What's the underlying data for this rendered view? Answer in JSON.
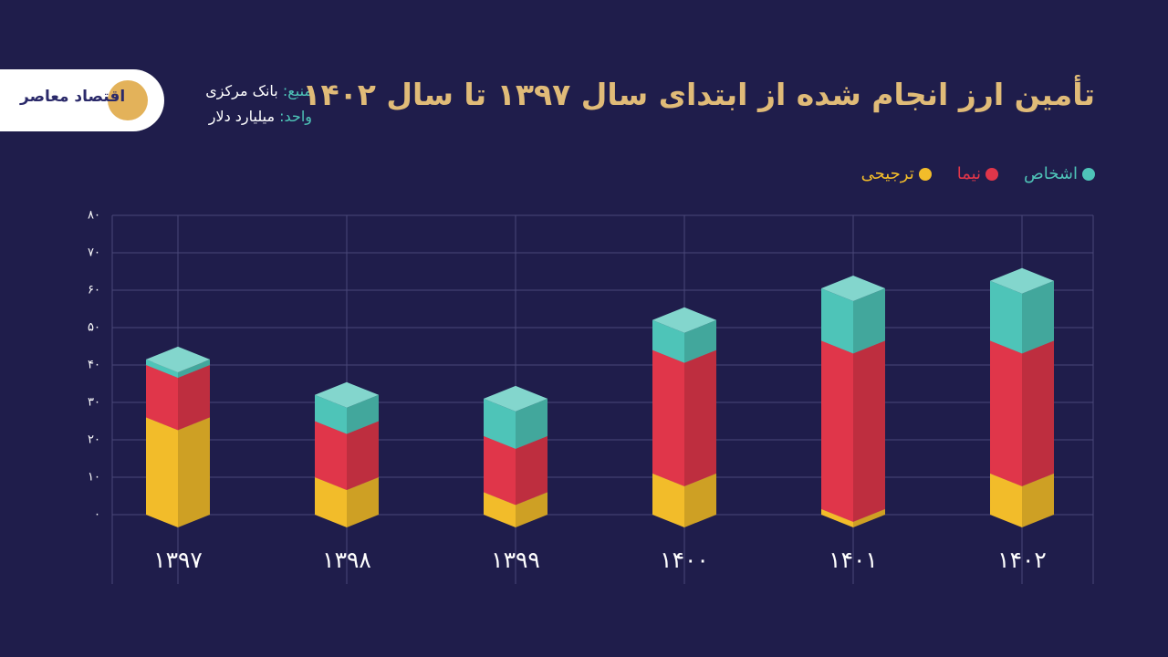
{
  "header": {
    "logo_text": "اقتصاد معاصر",
    "source_label": "منبع:",
    "source": "بانک مرکزی",
    "unit_label": "واحد:",
    "unit": "میلیارد دلار"
  },
  "chart_data": {
    "type": "stacked-3d-bar",
    "title": "تأمین ارز انجام شده از ابتدای سال ۱۳۹۷ تا سال ۱۴۰۲",
    "categories": [
      "۱۳۹۷",
      "۱۳۹۸",
      "۱۳۹۹",
      "۱۴۰۰",
      "۱۴۰۱",
      "۱۴۰۲"
    ],
    "series": [
      {
        "name": "ترجیحی",
        "color": "#f2bc2a",
        "values": [
          26,
          10,
          6,
          11,
          1.5,
          11
        ]
      },
      {
        "name": "نیما",
        "color": "#e0364a",
        "values": [
          14,
          15,
          15,
          33,
          45,
          35.5
        ]
      },
      {
        "name": "اشخاص",
        "color": "#4ec4b8",
        "values": [
          1.5,
          7,
          10,
          8,
          14,
          16
        ]
      }
    ],
    "ylim": [
      0,
      80
    ],
    "yticks": [
      {
        "value": 0,
        "label": "۰"
      },
      {
        "value": 10,
        "label": "۱۰"
      },
      {
        "value": 20,
        "label": "۲۰"
      },
      {
        "value": 30,
        "label": "۳۰"
      },
      {
        "value": 40,
        "label": "۴۰"
      },
      {
        "value": 50,
        "label": "۵۰"
      },
      {
        "value": 60,
        "label": "۶۰"
      },
      {
        "value": 70,
        "label": "۷۰"
      },
      {
        "value": 80,
        "label": "۸۰"
      }
    ],
    "grid": true
  }
}
